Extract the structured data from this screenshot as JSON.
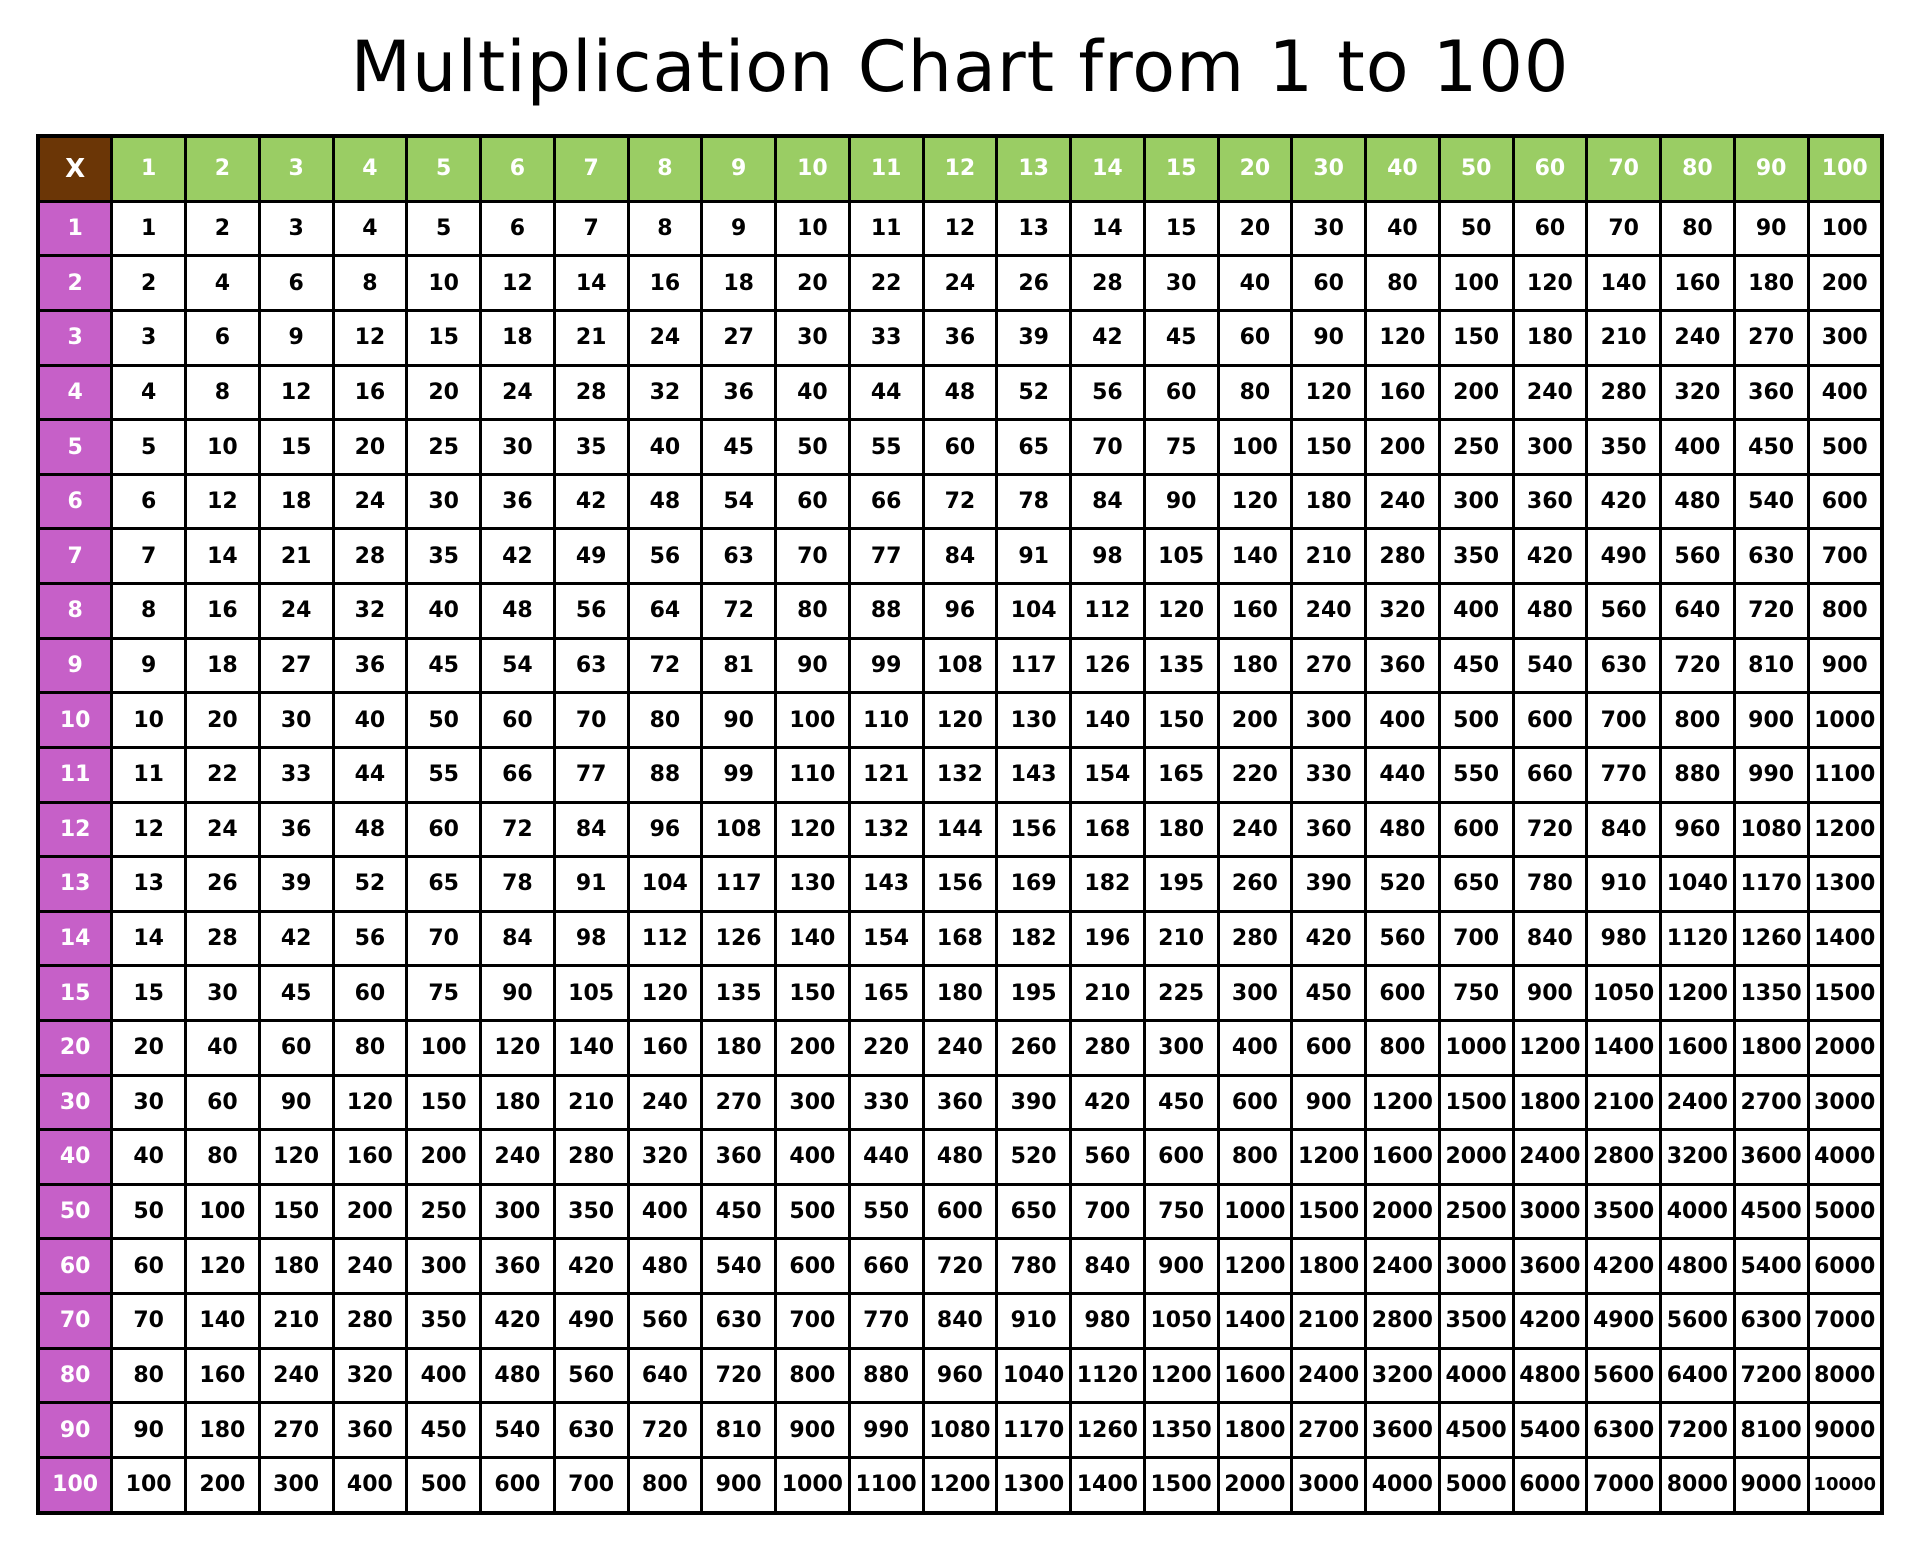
{
  "chart_data": {
    "type": "table",
    "title": "Multiplication Chart from 1 to 100",
    "corner": "X",
    "colors": {
      "corner": "#6b3606",
      "column_header": "#9acd64",
      "row_header": "#c660c8",
      "cell": "#ffffff"
    },
    "column_headers": [
      "1",
      "2",
      "3",
      "4",
      "5",
      "6",
      "7",
      "8",
      "9",
      "10",
      "11",
      "12",
      "13",
      "14",
      "15",
      "20",
      "30",
      "40",
      "50",
      "60",
      "70",
      "80",
      "90",
      "100"
    ],
    "row_headers": [
      "1",
      "2",
      "3",
      "4",
      "5",
      "6",
      "7",
      "8",
      "9",
      "10",
      "11",
      "12",
      "13",
      "14",
      "15",
      "20",
      "30",
      "40",
      "50",
      "60",
      "70",
      "80",
      "90",
      "100"
    ],
    "rows": [
      [
        "1",
        "2",
        "3",
        "4",
        "5",
        "6",
        "7",
        "8",
        "9",
        "10",
        "11",
        "12",
        "13",
        "14",
        "15",
        "20",
        "30",
        "40",
        "50",
        "60",
        "70",
        "80",
        "90",
        "100"
      ],
      [
        "2",
        "4",
        "6",
        "8",
        "10",
        "12",
        "14",
        "16",
        "18",
        "20",
        "22",
        "24",
        "26",
        "28",
        "30",
        "40",
        "60",
        "80",
        "100",
        "120",
        "140",
        "160",
        "180",
        "200"
      ],
      [
        "3",
        "6",
        "9",
        "12",
        "15",
        "18",
        "21",
        "24",
        "27",
        "30",
        "33",
        "36",
        "39",
        "42",
        "45",
        "60",
        "90",
        "120",
        "150",
        "180",
        "210",
        "240",
        "270",
        "300"
      ],
      [
        "4",
        "8",
        "12",
        "16",
        "20",
        "24",
        "28",
        "32",
        "36",
        "40",
        "44",
        "48",
        "52",
        "56",
        "60",
        "80",
        "120",
        "160",
        "200",
        "240",
        "280",
        "320",
        "360",
        "400"
      ],
      [
        "5",
        "10",
        "15",
        "20",
        "25",
        "30",
        "35",
        "40",
        "45",
        "50",
        "55",
        "60",
        "65",
        "70",
        "75",
        "100",
        "150",
        "200",
        "250",
        "300",
        "350",
        "400",
        "450",
        "500"
      ],
      [
        "6",
        "12",
        "18",
        "24",
        "30",
        "36",
        "42",
        "48",
        "54",
        "60",
        "66",
        "72",
        "78",
        "84",
        "90",
        "120",
        "180",
        "240",
        "300",
        "360",
        "420",
        "480",
        "540",
        "600"
      ],
      [
        "7",
        "14",
        "21",
        "28",
        "35",
        "42",
        "49",
        "56",
        "63",
        "70",
        "77",
        "84",
        "91",
        "98",
        "105",
        "140",
        "210",
        "280",
        "350",
        "420",
        "490",
        "560",
        "630",
        "700"
      ],
      [
        "8",
        "16",
        "24",
        "32",
        "40",
        "48",
        "56",
        "64",
        "72",
        "80",
        "88",
        "96",
        "104",
        "112",
        "120",
        "160",
        "240",
        "320",
        "400",
        "480",
        "560",
        "640",
        "720",
        "800"
      ],
      [
        "9",
        "18",
        "27",
        "36",
        "45",
        "54",
        "63",
        "72",
        "81",
        "90",
        "99",
        "108",
        "117",
        "126",
        "135",
        "180",
        "270",
        "360",
        "450",
        "540",
        "630",
        "720",
        "810",
        "900"
      ],
      [
        "10",
        "20",
        "30",
        "40",
        "50",
        "60",
        "70",
        "80",
        "90",
        "100",
        "110",
        "120",
        "130",
        "140",
        "150",
        "200",
        "300",
        "400",
        "500",
        "600",
        "700",
        "800",
        "900",
        "1000"
      ],
      [
        "11",
        "22",
        "33",
        "44",
        "55",
        "66",
        "77",
        "88",
        "99",
        "110",
        "121",
        "132",
        "143",
        "154",
        "165",
        "220",
        "330",
        "440",
        "550",
        "660",
        "770",
        "880",
        "990",
        "1100"
      ],
      [
        "12",
        "24",
        "36",
        "48",
        "60",
        "72",
        "84",
        "96",
        "108",
        "120",
        "132",
        "144",
        "156",
        "168",
        "180",
        "240",
        "360",
        "480",
        "600",
        "720",
        "840",
        "960",
        "1080",
        "1200"
      ],
      [
        "13",
        "26",
        "39",
        "52",
        "65",
        "78",
        "91",
        "104",
        "117",
        "130",
        "143",
        "156",
        "169",
        "182",
        "195",
        "260",
        "390",
        "520",
        "650",
        "780",
        "910",
        "1040",
        "1170",
        "1300"
      ],
      [
        "14",
        "28",
        "42",
        "56",
        "70",
        "84",
        "98",
        "112",
        "126",
        "140",
        "154",
        "168",
        "182",
        "196",
        "210",
        "280",
        "420",
        "560",
        "700",
        "840",
        "980",
        "1120",
        "1260",
        "1400"
      ],
      [
        "15",
        "30",
        "45",
        "60",
        "75",
        "90",
        "105",
        "120",
        "135",
        "150",
        "165",
        "180",
        "195",
        "210",
        "225",
        "300",
        "450",
        "600",
        "750",
        "900",
        "1050",
        "1200",
        "1350",
        "1500"
      ],
      [
        "20",
        "40",
        "60",
        "80",
        "100",
        "120",
        "140",
        "160",
        "180",
        "200",
        "220",
        "240",
        "260",
        "280",
        "300",
        "400",
        "600",
        "800",
        "1000",
        "1200",
        "1400",
        "1600",
        "1800",
        "2000"
      ],
      [
        "30",
        "60",
        "90",
        "120",
        "150",
        "180",
        "210",
        "240",
        "270",
        "300",
        "330",
        "360",
        "390",
        "420",
        "450",
        "600",
        "900",
        "1200",
        "1500",
        "1800",
        "2100",
        "2400",
        "2700",
        "3000"
      ],
      [
        "40",
        "80",
        "120",
        "160",
        "200",
        "240",
        "280",
        "320",
        "360",
        "400",
        "440",
        "480",
        "520",
        "560",
        "600",
        "800",
        "1200",
        "1600",
        "2000",
        "2400",
        "2800",
        "3200",
        "3600",
        "4000"
      ],
      [
        "50",
        "100",
        "150",
        "200",
        "250",
        "300",
        "350",
        "400",
        "450",
        "500",
        "550",
        "600",
        "650",
        "700",
        "750",
        "1000",
        "1500",
        "2000",
        "2500",
        "3000",
        "3500",
        "4000",
        "4500",
        "5000"
      ],
      [
        "60",
        "120",
        "180",
        "240",
        "300",
        "360",
        "420",
        "480",
        "540",
        "600",
        "660",
        "720",
        "780",
        "840",
        "900",
        "1200",
        "1800",
        "2400",
        "3000",
        "3600",
        "4200",
        "4800",
        "5400",
        "6000"
      ],
      [
        "70",
        "140",
        "210",
        "280",
        "350",
        "420",
        "490",
        "560",
        "630",
        "700",
        "770",
        "840",
        "910",
        "980",
        "1050",
        "1400",
        "2100",
        "2800",
        "3500",
        "4200",
        "4900",
        "5600",
        "6300",
        "7000"
      ],
      [
        "80",
        "160",
        "240",
        "320",
        "400",
        "480",
        "560",
        "640",
        "720",
        "800",
        "880",
        "960",
        "1040",
        "1120",
        "1200",
        "1600",
        "2400",
        "3200",
        "4000",
        "4800",
        "5600",
        "6400",
        "7200",
        "8000"
      ],
      [
        "90",
        "180",
        "270",
        "360",
        "450",
        "540",
        "630",
        "720",
        "810",
        "900",
        "990",
        "1080",
        "1170",
        "1260",
        "1350",
        "1800",
        "2700",
        "3600",
        "4500",
        "5400",
        "6300",
        "7200",
        "8100",
        "9000"
      ],
      [
        "100",
        "200",
        "300",
        "400",
        "500",
        "600",
        "700",
        "800",
        "900",
        "1000",
        "1100",
        "1200",
        "1300",
        "1400",
        "1500",
        "2000",
        "3000",
        "4000",
        "5000",
        "6000",
        "7000",
        "8000",
        "9000",
        "10000"
      ]
    ]
  }
}
